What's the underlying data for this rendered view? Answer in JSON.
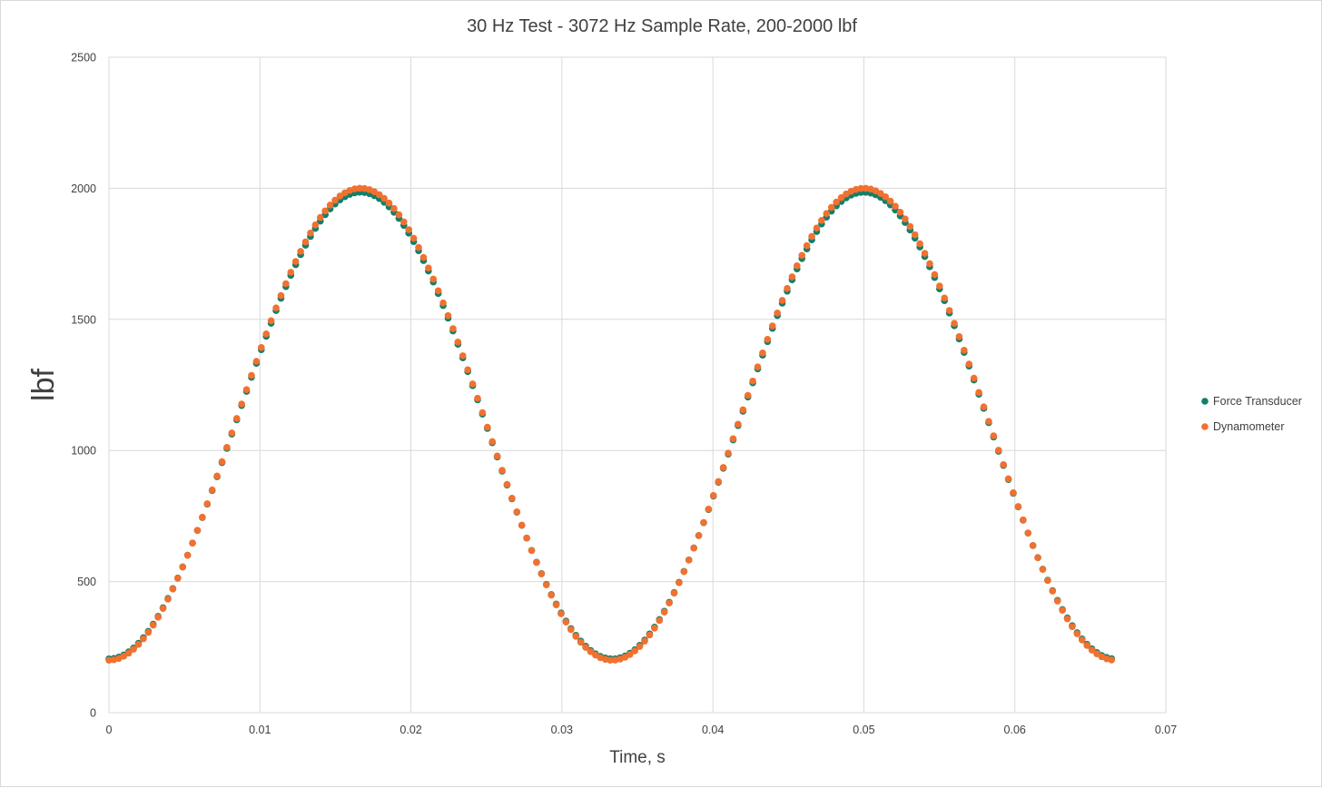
{
  "chart_data": {
    "type": "scatter",
    "title": "30 Hz Test - 3072 Hz Sample Rate, 200-2000 lbf",
    "xlabel": "Time, s",
    "ylabel": "lbf",
    "xlim": [
      0,
      0.07
    ],
    "ylim": [
      0,
      2500
    ],
    "x_ticks": [
      "0",
      "0.01",
      "0.02",
      "0.03",
      "0.04",
      "0.05",
      "0.06",
      "0.07"
    ],
    "y_ticks": [
      "0",
      "500",
      "1000",
      "1500",
      "2000",
      "2500"
    ],
    "grid": true,
    "legend_position": "right",
    "sample_rate_hz": 3072,
    "frequency_hz": 30,
    "sample_count": 205,
    "series": [
      {
        "name": "Force Transducer",
        "color": "#127f6a",
        "min": 205,
        "max": 1985
      },
      {
        "name": "Dynamometer",
        "color": "#f07130",
        "min": 200,
        "max": 2000
      }
    ],
    "signal_model": "y = min + (max - min) * (1 - cos(2*pi*30*t)) / 2, t = n / 3072"
  }
}
